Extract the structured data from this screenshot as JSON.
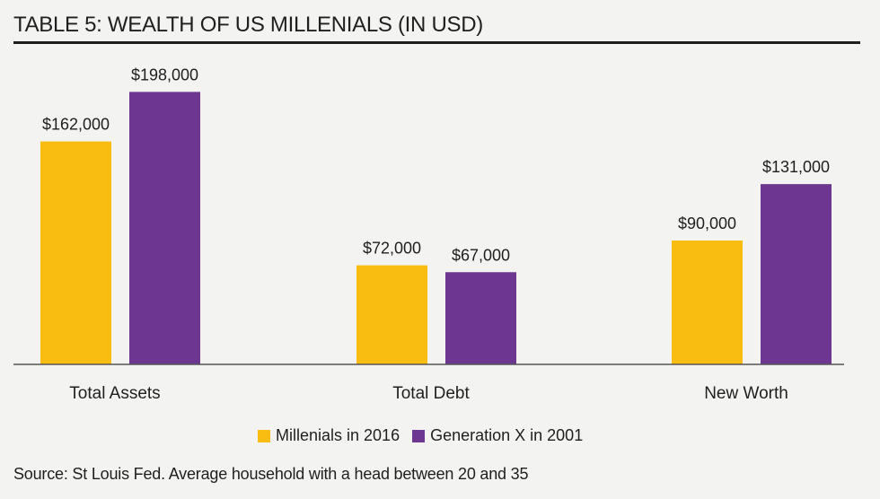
{
  "title": "TABLE 5: WEALTH OF US MILLENIALS (IN USD)",
  "source": "Source: St Louis Fed. Average household with a head between 20 and 35",
  "colors": {
    "millenials": "#f9bd12",
    "genx": "#6d3690",
    "axis": "#555555"
  },
  "chart_data": {
    "type": "bar",
    "title": "TABLE 5: WEALTH OF US MILLENIALS (IN USD)",
    "categories": [
      "Total Assets",
      "Total Debt",
      "New Worth"
    ],
    "series": [
      {
        "name": "Millenials in 2016",
        "values": [
          162000,
          72000,
          90000
        ],
        "labels": [
          "$162,000",
          "$72,000",
          "$90,000"
        ]
      },
      {
        "name": "Generation X in 2001",
        "values": [
          198000,
          67000,
          131000
        ],
        "labels": [
          "$198,000",
          "$67,000",
          "$131,000"
        ]
      }
    ],
    "ylim": [
      0,
      240000
    ],
    "xlabel": "",
    "ylabel": "",
    "legend": "bottom-center",
    "grid": false
  }
}
